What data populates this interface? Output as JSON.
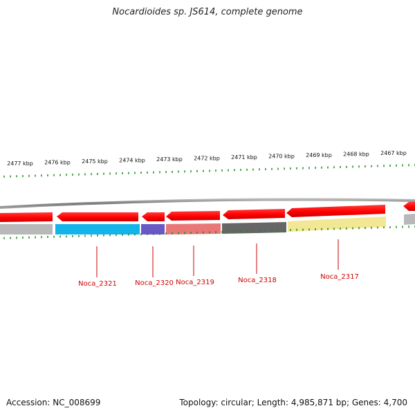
{
  "header": {
    "title": "Nocardioides sp. JS614, complete genome"
  },
  "footer": {
    "accession": "Accession: NC_008699",
    "summary": "Topology: circular; Length: 4,985,871 bp; Genes: 4,700"
  },
  "colors": {
    "backbone": "#8c8c8c",
    "cds": "#ff0000",
    "tick": "#1a8a1a",
    "gene_label": "#cc0000",
    "cog_light_gray": "#b8b8b8",
    "cog_blue": "#12b4ea",
    "cog_purple": "#6a58c4",
    "cog_salmon": "#ea7777",
    "cog_dark_gray": "#666666",
    "cog_yellow": "#f2e794"
  },
  "scale": {
    "unit": "kbp",
    "labels": [
      "2477 kbp",
      "2476 kbp",
      "2475 kbp",
      "2474 kbp",
      "2473 kbp",
      "2472 kbp",
      "2471 kbp",
      "2470 kbp",
      "2469 kbp",
      "2468 kbp",
      "2467 kbp"
    ]
  },
  "genes": [
    {
      "label": "Noca_2321",
      "cog_color": "cog_blue"
    },
    {
      "label": "Noca_2320",
      "cog_color": "cog_purple"
    },
    {
      "label": "Noca_2319",
      "cog_color": "cog_salmon"
    },
    {
      "label": "Noca_2318",
      "cog_color": "cog_dark_gray"
    },
    {
      "label": "Noca_2317",
      "cog_color": "cog_yellow"
    }
  ]
}
